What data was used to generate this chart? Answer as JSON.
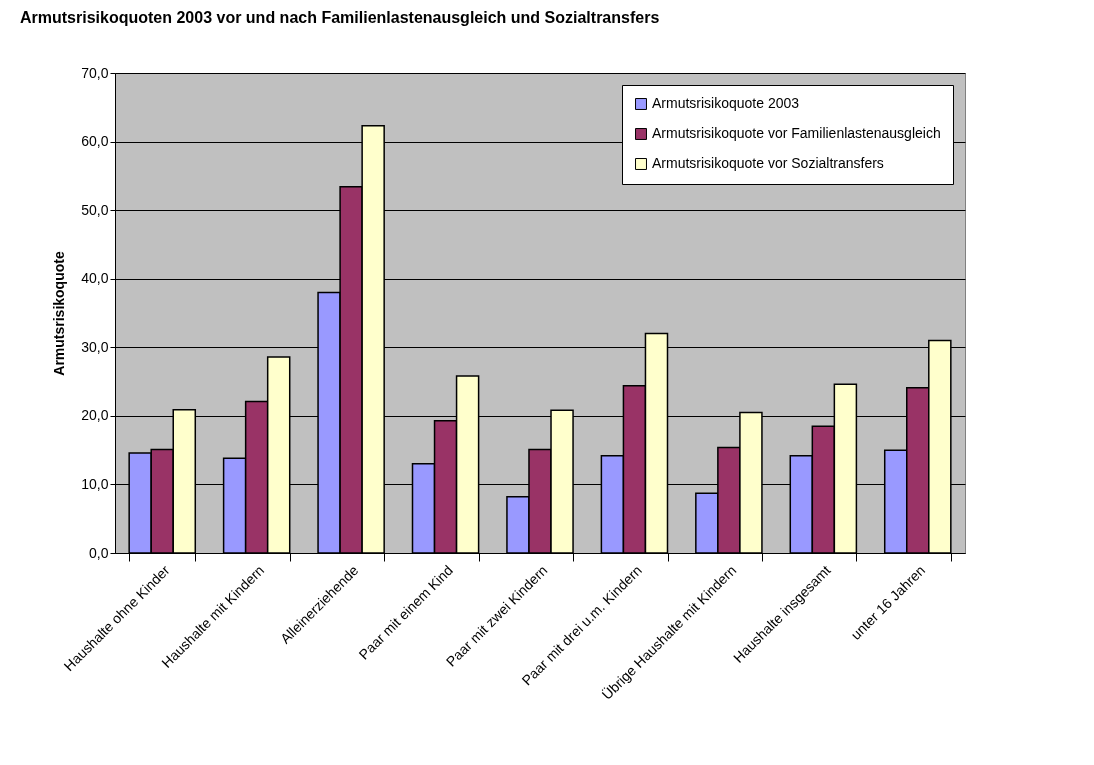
{
  "chart_data": {
    "type": "bar",
    "title": "Armutsrisikoquoten 2003 vor und nach Familienlastenausgleich und Sozialtransfers",
    "ylabel": "Armutsrisikoquote",
    "categories": [
      "Haushalte ohne Kinder",
      "Haushalte mit Kindern",
      "Alleinerziehende",
      "Paar mit einem Kind",
      "Paar mit zwei Kindern",
      "Paar mit drei u.m. Kindern",
      "Übrige Haushalte mit Kindern",
      "Haushalte insgesamt",
      "unter 16 Jahren"
    ],
    "series": [
      {
        "name": "Armutsrisikoquote 2003",
        "color": "#9999ff",
        "values": [
          14.6,
          13.8,
          38.0,
          13.0,
          8.2,
          14.2,
          8.7,
          14.2,
          15.0
        ]
      },
      {
        "name": "Armutsrisikoquote vor Familienlastenausgleich",
        "color": "#993366",
        "values": [
          15.1,
          22.1,
          53.4,
          19.3,
          15.1,
          24.4,
          15.4,
          18.5,
          24.1
        ]
      },
      {
        "name": "Armutsrisikoquote vor Sozialtransfers",
        "color": "#ffffcc",
        "values": [
          20.9,
          28.6,
          62.3,
          25.8,
          20.8,
          32.0,
          20.5,
          24.6,
          31.0
        ]
      }
    ],
    "ylim": [
      0,
      70
    ],
    "yticks": [
      {
        "value": 0,
        "label": "0,0"
      },
      {
        "value": 10,
        "label": "10,0"
      },
      {
        "value": 20,
        "label": "20,0"
      },
      {
        "value": 30,
        "label": "30,0"
      },
      {
        "value": 40,
        "label": "40,0"
      },
      {
        "value": 50,
        "label": "50,0"
      },
      {
        "value": 60,
        "label": "60,0"
      },
      {
        "value": 70,
        "label": "70,0"
      }
    ],
    "grid": "y",
    "legend": "top right"
  }
}
